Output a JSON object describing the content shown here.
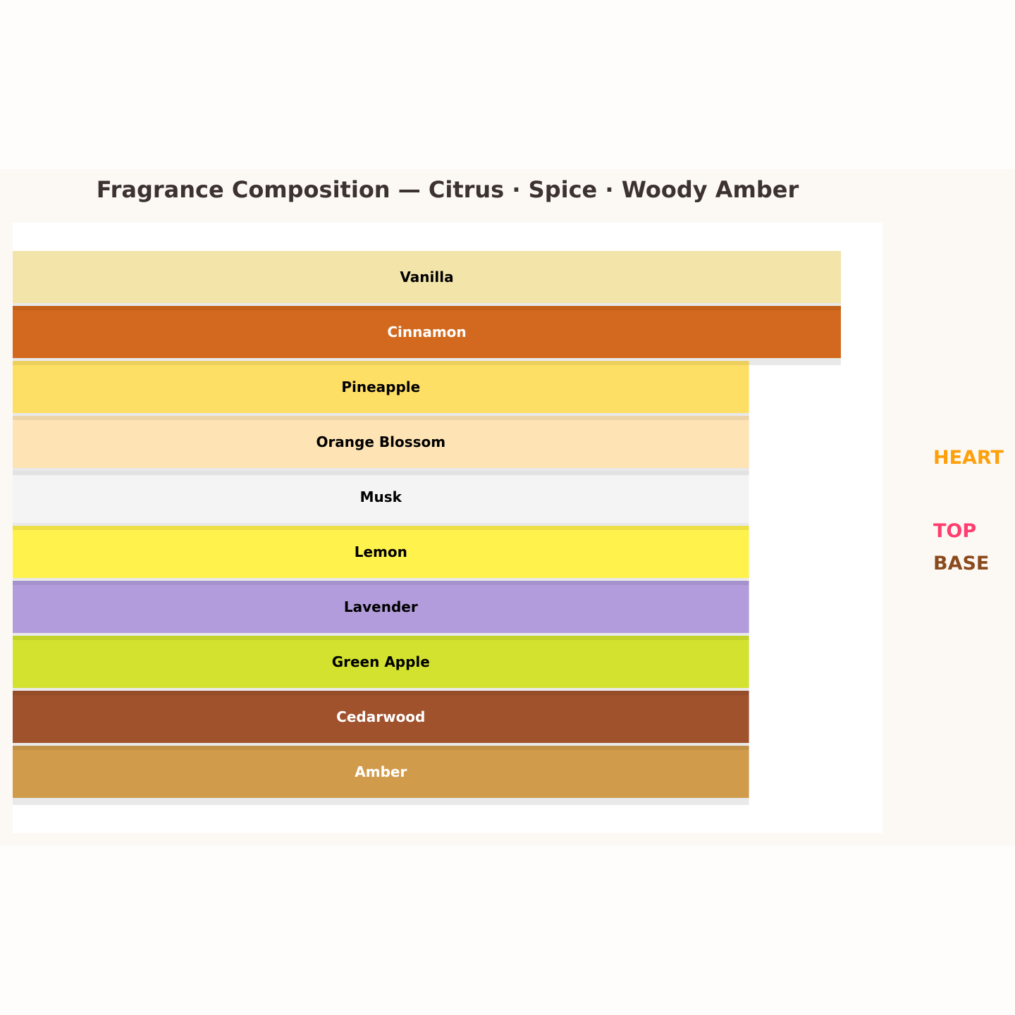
{
  "chart_data": {
    "type": "funnel",
    "title": "Fragrance Composition — Citrus · Spice · Woody Amber",
    "categories": [
      "Vanilla",
      "Cinnamon",
      "Pineapple",
      "Orange Blossom",
      "Musk",
      "Lemon",
      "Lavender",
      "Green Apple",
      "Cedarwood",
      "Amber"
    ],
    "values": [
      100,
      100,
      88.9,
      88.9,
      88.9,
      88.9,
      88.9,
      88.9,
      88.9,
      88.9
    ],
    "colors": [
      "#f3e4aa",
      "#d2691e",
      "#fedf65",
      "#fee4b5",
      "#f4f4f4",
      "#fff24d",
      "#b29cdb",
      "#d2e22e",
      "#a0522d",
      "#d19b4c"
    ],
    "label_colors": [
      "#000000",
      "#ffffff",
      "#000000",
      "#000000",
      "#000000",
      "#000000",
      "#000000",
      "#000000",
      "#ffffff",
      "#ffffff"
    ],
    "legend": [
      {
        "name": "HEART",
        "color": "#ff9f0a"
      },
      {
        "name": "TOP",
        "color": "#ff3d6e"
      },
      {
        "name": "BASE",
        "color": "#8b4a1e"
      }
    ],
    "legend_position": "right",
    "grid": false
  }
}
